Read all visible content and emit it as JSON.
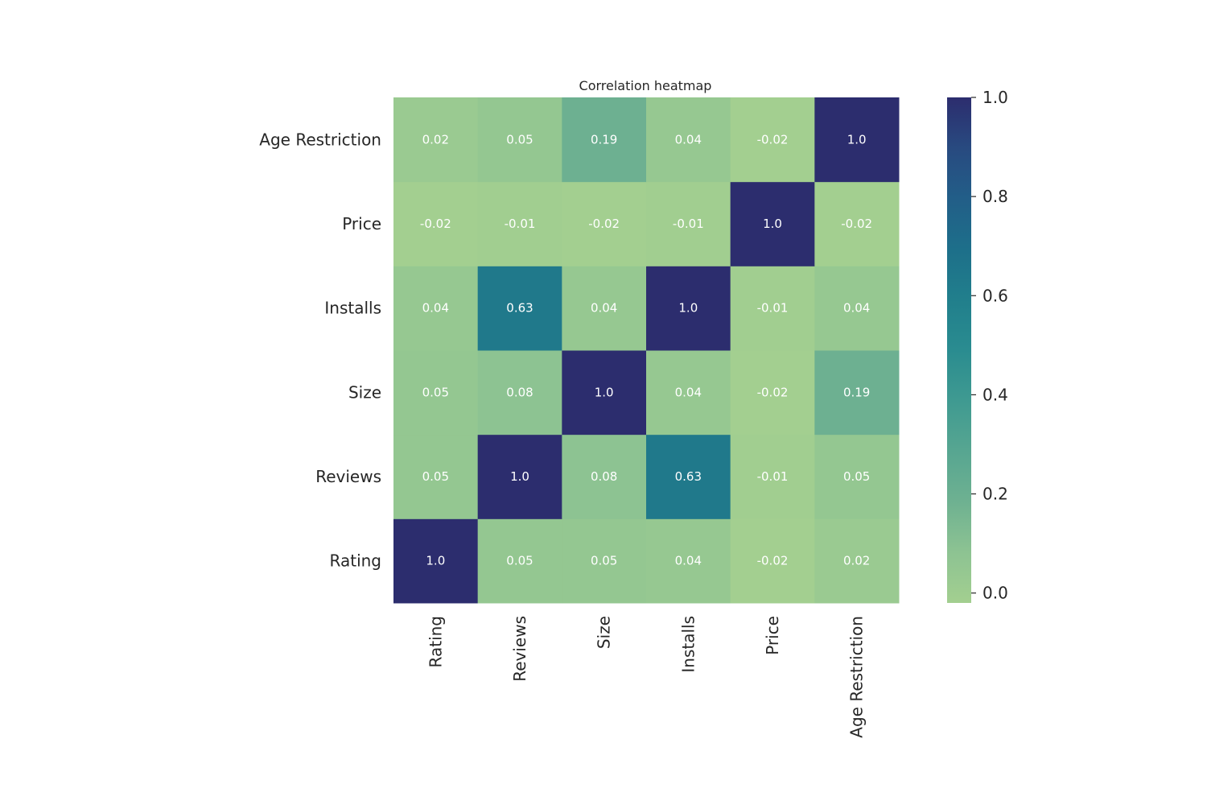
{
  "chart_data": {
    "type": "heatmap",
    "title": "Correlation heatmap",
    "x_categories": [
      "Rating",
      "Reviews",
      "Size",
      "Installs",
      "Price",
      "Age Restriction"
    ],
    "y_categories": [
      "Rating",
      "Reviews",
      "Size",
      "Installs",
      "Price",
      "Age Restriction"
    ],
    "matrix": [
      [
        1.0,
        0.05,
        0.05,
        0.04,
        -0.02,
        0.02
      ],
      [
        0.05,
        1.0,
        0.08,
        0.63,
        -0.01,
        0.05
      ],
      [
        0.05,
        0.08,
        1.0,
        0.04,
        -0.02,
        0.19
      ],
      [
        0.04,
        0.63,
        0.04,
        1.0,
        -0.01,
        0.04
      ],
      [
        -0.02,
        -0.01,
        -0.02,
        -0.01,
        1.0,
        -0.02
      ],
      [
        0.02,
        0.05,
        0.19,
        0.04,
        -0.02,
        1.0
      ]
    ],
    "cell_labels": [
      [
        "1.0",
        "0.05",
        "0.05",
        "0.04",
        "-0.02",
        "0.02"
      ],
      [
        "0.05",
        "1.0",
        "0.08",
        "0.63",
        "-0.01",
        "0.05"
      ],
      [
        "0.05",
        "0.08",
        "1.0",
        "0.04",
        "-0.02",
        "0.19"
      ],
      [
        "0.04",
        "0.63",
        "0.04",
        "1.0",
        "-0.01",
        "0.04"
      ],
      [
        "-0.02",
        "-0.01",
        "-0.02",
        "-0.01",
        "1.0",
        "-0.02"
      ],
      [
        "0.02",
        "0.05",
        "0.19",
        "0.04",
        "-0.02",
        "1.0"
      ]
    ],
    "y_axis_inverted": true,
    "colorbar": {
      "vmin": -0.02,
      "vmax": 1.0,
      "ticks": [
        0.0,
        0.2,
        0.4,
        0.6,
        0.8,
        1.0
      ],
      "tick_labels": [
        "0.0",
        "0.2",
        "0.4",
        "0.6",
        "0.8",
        "1.0"
      ]
    },
    "colormap": {
      "name": "crest",
      "stops": [
        [
          0.0,
          "#a3cf90"
        ],
        [
          0.1,
          "#8dc392"
        ],
        [
          0.2,
          "#6eb191"
        ],
        [
          0.3,
          "#57a691"
        ],
        [
          0.4,
          "#3f9a91"
        ],
        [
          0.5,
          "#2a8c90"
        ],
        [
          0.6,
          "#217f8c"
        ],
        [
          0.7,
          "#1d6f8a"
        ],
        [
          0.8,
          "#225e88"
        ],
        [
          0.9,
          "#284a80"
        ],
        [
          1.0,
          "#2c2d6e"
        ]
      ]
    },
    "grid": false,
    "legend": "colorbar-right"
  }
}
